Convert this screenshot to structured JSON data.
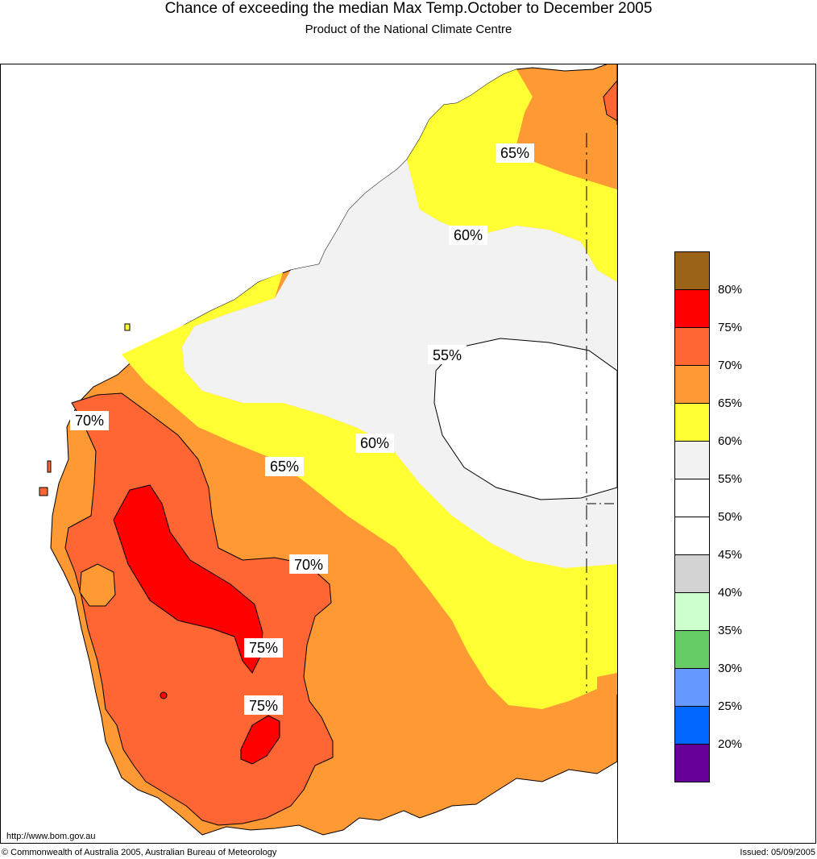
{
  "header": {
    "title": "Chance of exceeding the median Max Temp.October to December 2005",
    "subtitle": "Product of the National Climate Centre"
  },
  "map": {
    "region": "Western Australia",
    "contour_labels": {
      "c65_north": "65%",
      "c60_north": "60%",
      "c55": "55%",
      "c70_west": "70%",
      "c60_mid": "60%",
      "c65_mid": "65%",
      "c70_south": "70%",
      "c75_a": "75%",
      "c75_b": "75%"
    },
    "zone_colors": {
      "p80": "#9c6418",
      "p75": "#ff0000",
      "p70": "#ff6633",
      "p65": "#ff9933",
      "p60": "#ffff33",
      "p55": "#f2f2f2",
      "p50": "#ffffff",
      "p45": "#ffffff",
      "p40": "#d3d3d3",
      "p35": "#ccffcc",
      "p30": "#66cc66",
      "p25": "#6699ff",
      "p20": "#0066ff",
      "p15": "#660099"
    }
  },
  "legend": {
    "swatches": [
      "#9c6418",
      "#ff0000",
      "#ff6633",
      "#ff9933",
      "#ffff33",
      "#f2f2f2",
      "#ffffff",
      "#ffffff",
      "#d3d3d3",
      "#ccffcc",
      "#66cc66",
      "#6699ff",
      "#0066ff",
      "#660099"
    ],
    "labels": [
      "80%",
      "75%",
      "70%",
      "65%",
      "60%",
      "55%",
      "50%",
      "45%",
      "40%",
      "35%",
      "30%",
      "25%",
      "20%"
    ]
  },
  "footer": {
    "website": "http://www.bom.gov.au",
    "copyright": "© Commonwealth of Australia 2005, Australian Bureau of Meteorology",
    "issued": "Issued: 05/09/2005"
  }
}
